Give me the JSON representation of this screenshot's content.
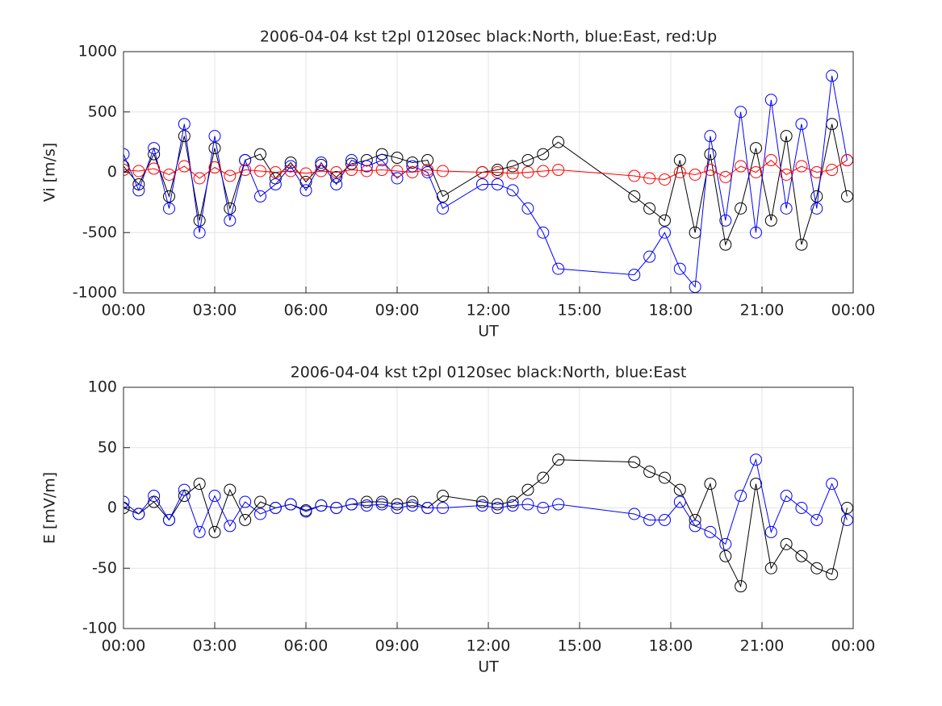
{
  "chart_data": [
    {
      "type": "scatter",
      "title": "2006-04-04 kst t2pl 0120sec black:North, blue:East, red:Up",
      "xlabel": "UT",
      "ylabel": "Vi [m/s]",
      "xlim": [
        0,
        24
      ],
      "xticks": [
        {
          "value": 0,
          "label": "00:00"
        },
        {
          "value": 3,
          "label": "03:00"
        },
        {
          "value": 6,
          "label": "06:00"
        },
        {
          "value": 9,
          "label": "09:00"
        },
        {
          "value": 12,
          "label": "12:00"
        },
        {
          "value": 15,
          "label": "15:00"
        },
        {
          "value": 18,
          "label": "18:00"
        },
        {
          "value": 21,
          "label": "21:00"
        },
        {
          "value": 24,
          "label": "00:00"
        }
      ],
      "ylim": [
        -1000,
        1000
      ],
      "yticks": [
        -1000,
        -500,
        0,
        500,
        1000
      ],
      "grid": true,
      "x": [
        0,
        0.5,
        1,
        1.5,
        2,
        2.5,
        3,
        3.5,
        4,
        4.5,
        5,
        5.5,
        6,
        6.5,
        7,
        7.5,
        8,
        8.5,
        9,
        9.5,
        10,
        10.5,
        11.8,
        12.3,
        12.8,
        13.3,
        13.8,
        14.3,
        16.8,
        17.3,
        17.8,
        18.3,
        18.8,
        19.3,
        19.8,
        20.3,
        20.8,
        21.3,
        21.8,
        22.3,
        22.8,
        23.3,
        23.8
      ],
      "series": [
        {
          "name": "North",
          "color": "#000000",
          "values": [
            50,
            -100,
            150,
            -200,
            300,
            -400,
            200,
            -300,
            100,
            150,
            -50,
            80,
            -80,
            60,
            -40,
            70,
            100,
            150,
            120,
            80,
            100,
            -200,
            0,
            20,
            50,
            100,
            150,
            250,
            -200,
            -300,
            -400,
            100,
            -500,
            150,
            -600,
            -300,
            200,
            -400,
            300,
            -600,
            -200,
            400,
            -200
          ]
        },
        {
          "name": "East",
          "color": "#0000ff",
          "values": [
            150,
            -150,
            200,
            -300,
            400,
            -500,
            300,
            -400,
            100,
            -200,
            -100,
            50,
            -150,
            80,
            -100,
            100,
            50,
            100,
            -50,
            50,
            0,
            -300,
            -100,
            -100,
            -150,
            -300,
            -500,
            -800,
            -850,
            -700,
            -500,
            -800,
            -950,
            300,
            -400,
            500,
            -500,
            600,
            -300,
            400,
            -300,
            800,
            100
          ]
        },
        {
          "name": "Up",
          "color": "#ff0000",
          "values": [
            20,
            10,
            30,
            -20,
            50,
            -50,
            40,
            -30,
            20,
            10,
            0,
            10,
            -10,
            10,
            0,
            20,
            10,
            20,
            10,
            0,
            20,
            10,
            0,
            0,
            -10,
            0,
            10,
            20,
            -30,
            -50,
            -60,
            0,
            -20,
            20,
            -40,
            50,
            0,
            100,
            -20,
            50,
            0,
            20,
            100
          ]
        }
      ]
    },
    {
      "type": "scatter",
      "title": "2006-04-04 kst t2pl 0120sec black:North, blue:East",
      "xlabel": "UT",
      "ylabel": "E [mV/m]",
      "xlim": [
        0,
        24
      ],
      "xticks": [
        {
          "value": 0,
          "label": "00:00"
        },
        {
          "value": 3,
          "label": "03:00"
        },
        {
          "value": 6,
          "label": "06:00"
        },
        {
          "value": 9,
          "label": "09:00"
        },
        {
          "value": 12,
          "label": "12:00"
        },
        {
          "value": 15,
          "label": "15:00"
        },
        {
          "value": 18,
          "label": "18:00"
        },
        {
          "value": 21,
          "label": "21:00"
        },
        {
          "value": 24,
          "label": "00:00"
        }
      ],
      "ylim": [
        -100,
        100
      ],
      "yticks": [
        -100,
        -50,
        0,
        50,
        100
      ],
      "grid": true,
      "x": [
        0,
        0.5,
        1,
        1.5,
        2,
        2.5,
        3,
        3.5,
        4,
        4.5,
        5,
        5.5,
        6,
        6.5,
        7,
        7.5,
        8,
        8.5,
        9,
        9.5,
        10,
        10.5,
        11.8,
        12.3,
        12.8,
        13.3,
        13.8,
        14.3,
        16.8,
        17.3,
        17.8,
        18.3,
        18.8,
        19.3,
        19.8,
        20.3,
        20.8,
        21.3,
        21.8,
        22.3,
        22.8,
        23.3,
        23.8
      ],
      "series": [
        {
          "name": "North",
          "color": "#000000",
          "values": [
            0,
            -5,
            5,
            -10,
            10,
            20,
            -20,
            15,
            -10,
            5,
            0,
            3,
            -2,
            2,
            0,
            3,
            5,
            5,
            3,
            5,
            0,
            10,
            5,
            3,
            5,
            15,
            25,
            40,
            38,
            30,
            25,
            15,
            -10,
            20,
            -40,
            -65,
            20,
            -50,
            -30,
            -40,
            -50,
            -55,
            0
          ]
        },
        {
          "name": "East",
          "color": "#0000ff",
          "values": [
            5,
            -5,
            10,
            -10,
            15,
            -20,
            10,
            -15,
            5,
            -5,
            0,
            3,
            -3,
            2,
            0,
            3,
            2,
            3,
            0,
            2,
            0,
            0,
            2,
            0,
            2,
            3,
            0,
            3,
            -5,
            -10,
            -10,
            5,
            -15,
            -20,
            -30,
            10,
            40,
            -20,
            10,
            0,
            -10,
            20,
            -10
          ]
        }
      ]
    }
  ]
}
